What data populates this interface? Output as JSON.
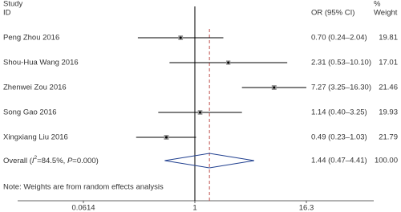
{
  "chart_data": {
    "type": "forest",
    "headers": {
      "study": "Study",
      "id": "ID",
      "effect": "OR (95% CI)",
      "pct": "%",
      "weight": "Weight"
    },
    "studies": [
      {
        "name": "Peng Zhou 2016",
        "or": 0.7,
        "lo": 0.24,
        "hi": 2.04,
        "label": "0.70 (0.24–2.04)",
        "weight": 19.81
      },
      {
        "name": "Shou-Hua Wang 2016",
        "or": 2.31,
        "lo": 0.53,
        "hi": 10.1,
        "label": "2.31 (0.53–10.10)",
        "weight": 17.01
      },
      {
        "name": "Zhenwei Zou 2016",
        "or": 7.27,
        "lo": 3.25,
        "hi": 16.3,
        "label": "7.27 (3.25–16.30)",
        "weight": 21.46
      },
      {
        "name": "Song Gao 2016",
        "or": 1.14,
        "lo": 0.4,
        "hi": 3.25,
        "label": "1.14 (0.40–3.25)",
        "weight": 19.93
      },
      {
        "name": "Xingxiang Liu 2016",
        "or": 0.49,
        "lo": 0.23,
        "hi": 1.03,
        "label": "0.49 (0.23–1.03)",
        "weight": 21.79
      }
    ],
    "overall": {
      "label_parts": [
        "Overall (",
        "I",
        "2",
        "=84.5%, ",
        "P",
        "=0.000)"
      ],
      "or": 1.44,
      "lo": 0.47,
      "hi": 4.41,
      "label": "1.44 (0.47–4.41)",
      "weight": 100,
      "weight_label": "100.00"
    },
    "note": "Note: Weights are from random effects analysis",
    "null_value": 1,
    "log_x": true,
    "xlim": [
      0.0614,
      16.3
    ],
    "xticks": [
      0.0614,
      1,
      16.3
    ],
    "colors": {
      "marker": "#999999",
      "line": "#000000",
      "diamond": "#1f3f8f",
      "overall_line": "#c0504d"
    }
  }
}
